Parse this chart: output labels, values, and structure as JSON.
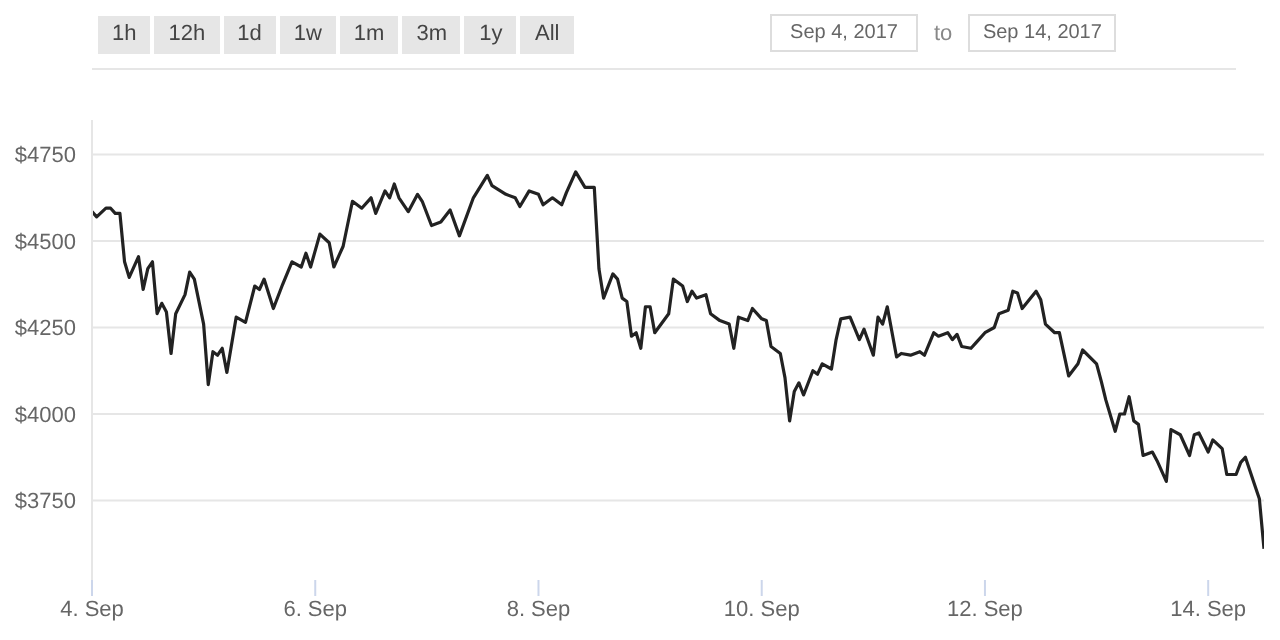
{
  "chart_data": {
    "type": "line",
    "annotations": [
      "1h",
      "12h",
      "1d",
      "1w",
      "1m",
      "3m",
      "1y",
      "All",
      "Sep 4, 2017",
      "to",
      "Sep 14, 2017"
    ],
    "x": [
      "2017-09-04T00:00",
      "2017-09-04T01:00",
      "2017-09-04T03:00",
      "2017-09-04T04:00",
      "2017-09-04T05:00",
      "2017-09-04T06:00",
      "2017-09-04T07:00",
      "2017-09-04T08:00",
      "2017-09-04T10:00",
      "2017-09-04T11:00",
      "2017-09-04T12:00",
      "2017-09-04T13:00",
      "2017-09-04T14:00",
      "2017-09-04T15:00",
      "2017-09-04T16:00",
      "2017-09-04T17:00",
      "2017-09-04T18:00",
      "2017-09-04T20:00",
      "2017-09-04T21:00",
      "2017-09-04T22:00",
      "2017-09-05T00:00",
      "2017-09-05T01:00",
      "2017-09-05T02:00",
      "2017-09-05T03:00",
      "2017-09-05T04:00",
      "2017-09-05T05:00",
      "2017-09-05T07:00",
      "2017-09-05T09:00",
      "2017-09-05T11:00",
      "2017-09-05T12:00",
      "2017-09-05T13:00",
      "2017-09-05T15:00",
      "2017-09-05T17:00",
      "2017-09-05T19:00",
      "2017-09-05T21:00",
      "2017-09-05T22:00",
      "2017-09-05T23:00",
      "2017-09-06T01:00",
      "2017-09-06T03:00",
      "2017-09-06T04:00",
      "2017-09-06T06:00",
      "2017-09-06T08:00",
      "2017-09-06T10:00",
      "2017-09-06T12:00",
      "2017-09-06T13:00",
      "2017-09-06T15:00",
      "2017-09-06T16:00",
      "2017-09-06T17:00",
      "2017-09-06T18:00",
      "2017-09-06T20:00",
      "2017-09-06T22:00",
      "2017-09-06T23:00",
      "2017-09-07T01:00",
      "2017-09-07T03:00",
      "2017-09-07T05:00",
      "2017-09-07T07:00",
      "2017-09-07T10:00",
      "2017-09-07T13:00",
      "2017-09-07T14:00",
      "2017-09-07T17:00",
      "2017-09-07T19:00",
      "2017-09-07T20:00",
      "2017-09-07T22:00",
      "2017-09-08T00:00",
      "2017-09-08T01:00",
      "2017-09-08T03:00",
      "2017-09-08T05:00",
      "2017-09-08T06:00",
      "2017-09-08T08:00",
      "2017-09-08T10:00",
      "2017-09-08T12:00",
      "2017-09-08T13:00",
      "2017-09-08T14:00",
      "2017-09-08T16:00",
      "2017-09-08T17:00",
      "2017-09-08T18:00",
      "2017-09-08T19:00",
      "2017-09-08T20:00",
      "2017-09-08T21:00",
      "2017-09-08T22:00",
      "2017-09-08T23:00",
      "2017-09-09T00:00",
      "2017-09-09T01:00",
      "2017-09-09T04:00",
      "2017-09-09T05:00",
      "2017-09-09T07:00",
      "2017-09-09T08:00",
      "2017-09-09T09:00",
      "2017-09-09T10:00",
      "2017-09-09T12:00",
      "2017-09-09T13:00",
      "2017-09-09T15:00",
      "2017-09-09T17:00",
      "2017-09-09T18:00",
      "2017-09-09T19:00",
      "2017-09-09T21:00",
      "2017-09-09T22:00",
      "2017-09-10T00:00",
      "2017-09-10T01:00",
      "2017-09-10T02:00",
      "2017-09-10T04:00",
      "2017-09-10T05:00",
      "2017-09-10T06:00",
      "2017-09-10T07:00",
      "2017-09-10T08:00",
      "2017-09-10T09:00",
      "2017-09-10T11:00",
      "2017-09-10T12:00",
      "2017-09-10T13:00",
      "2017-09-10T15:00",
      "2017-09-10T16:00",
      "2017-09-10T17:00",
      "2017-09-10T19:00",
      "2017-09-10T21:00",
      "2017-09-10T22:00",
      "2017-09-11T00:00",
      "2017-09-11T01:00",
      "2017-09-11T02:00",
      "2017-09-11T03:00",
      "2017-09-11T05:00",
      "2017-09-11T06:00",
      "2017-09-11T08:00",
      "2017-09-11T10:00",
      "2017-09-11T11:00",
      "2017-09-11T13:00",
      "2017-09-11T14:00",
      "2017-09-11T16:00",
      "2017-09-11T17:00",
      "2017-09-11T18:00",
      "2017-09-11T19:00",
      "2017-09-11T21:00",
      "2017-09-11T22:00",
      "2017-09-12T00:00",
      "2017-09-12T02:00",
      "2017-09-12T03:00",
      "2017-09-12T05:00",
      "2017-09-12T06:00",
      "2017-09-12T07:00",
      "2017-09-12T08:00",
      "2017-09-12T11:00",
      "2017-09-12T12:00",
      "2017-09-12T13:00",
      "2017-09-12T15:00",
      "2017-09-12T16:00",
      "2017-09-12T18:00",
      "2017-09-12T20:00",
      "2017-09-12T21:00",
      "2017-09-13T00:00",
      "2017-09-13T01:00",
      "2017-09-13T02:00",
      "2017-09-13T04:00",
      "2017-09-13T05:00",
      "2017-09-13T06:00",
      "2017-09-13T07:00",
      "2017-09-13T08:00",
      "2017-09-13T09:00",
      "2017-09-13T10:00",
      "2017-09-13T12:00",
      "2017-09-13T13:00",
      "2017-09-13T15:00",
      "2017-09-13T16:00",
      "2017-09-13T18:00",
      "2017-09-13T20:00",
      "2017-09-13T21:00",
      "2017-09-13T22:00",
      "2017-09-14T00:00",
      "2017-09-14T01:00",
      "2017-09-14T03:00",
      "2017-09-14T04:00",
      "2017-09-14T06:00",
      "2017-09-14T07:00",
      "2017-09-14T08:00",
      "2017-09-14T10:00",
      "2017-09-14T11:00",
      "2017-09-14T12:00"
    ],
    "series": [
      {
        "color": "#222222",
        "values": [
          4585,
          4570,
          4595,
          4595,
          4580,
          4580,
          4440,
          4395,
          4455,
          4360,
          4420,
          4440,
          4290,
          4320,
          4295,
          4175,
          4290,
          4345,
          4410,
          4390,
          4260,
          4085,
          4180,
          4170,
          4190,
          4120,
          4280,
          4265,
          4370,
          4360,
          4390,
          4305,
          4375,
          4440,
          4425,
          4465,
          4425,
          4520,
          4495,
          4425,
          4485,
          4615,
          4595,
          4625,
          4580,
          4645,
          4625,
          4665,
          4625,
          4585,
          4635,
          4615,
          4545,
          4555,
          4590,
          4515,
          4625,
          4690,
          4660,
          4635,
          4625,
          4600,
          4645,
          4635,
          4605,
          4625,
          4605,
          4640,
          4700,
          4655,
          4655,
          4420,
          4335,
          4405,
          4390,
          4335,
          4325,
          4225,
          4235,
          4190,
          4310,
          4310,
          4235,
          4290,
          4390,
          4370,
          4325,
          4355,
          4335,
          4345,
          4290,
          4270,
          4260,
          4190,
          4280,
          4270,
          4305,
          4275,
          4270,
          4195,
          4175,
          4105,
          3980,
          4065,
          4090,
          4055,
          4125,
          4115,
          4145,
          4130,
          4215,
          4275,
          4280,
          4215,
          4245,
          4170,
          4280,
          4260,
          4310,
          4165,
          4175,
          4170,
          4180,
          4170,
          4235,
          4225,
          4235,
          4215,
          4230,
          4195,
          4190,
          4205,
          4235,
          4250,
          4290,
          4300,
          4355,
          4350,
          4305,
          4355,
          4330,
          4260,
          4235,
          4235,
          4110,
          4145,
          4185,
          4145,
          4095,
          4040,
          3950,
          4000,
          4000,
          4050,
          3980,
          3970,
          3880,
          3890,
          3865,
          3805,
          3955,
          3940,
          3880,
          3940,
          3945,
          3890,
          3925,
          3900,
          3825,
          3825,
          3860,
          3875,
          3795,
          3755,
          3610
        ]
      }
    ],
    "xlim": [
      "2017-09-04T00:00",
      "2017-09-14T12:00"
    ],
    "xticks": [
      {
        "value": "2017-09-04",
        "label": "4. Sep"
      },
      {
        "value": "2017-09-06",
        "label": "6. Sep"
      },
      {
        "value": "2017-09-08",
        "label": "8. Sep"
      },
      {
        "value": "2017-09-10",
        "label": "10. Sep"
      },
      {
        "value": "2017-09-12",
        "label": "12. Sep"
      },
      {
        "value": "2017-09-14",
        "label": "14. Sep"
      }
    ],
    "ylim": [
      3520,
      4850
    ],
    "yticks": [
      {
        "value": 3750,
        "label": "$3750"
      },
      {
        "value": 4000,
        "label": "$4000"
      },
      {
        "value": 4250,
        "label": "$4250"
      },
      {
        "value": 4500,
        "label": "$4500"
      },
      {
        "value": 4750,
        "label": "$4750"
      }
    ],
    "grid": "y",
    "legend": false,
    "marker": "none",
    "line_style": "solid"
  }
}
